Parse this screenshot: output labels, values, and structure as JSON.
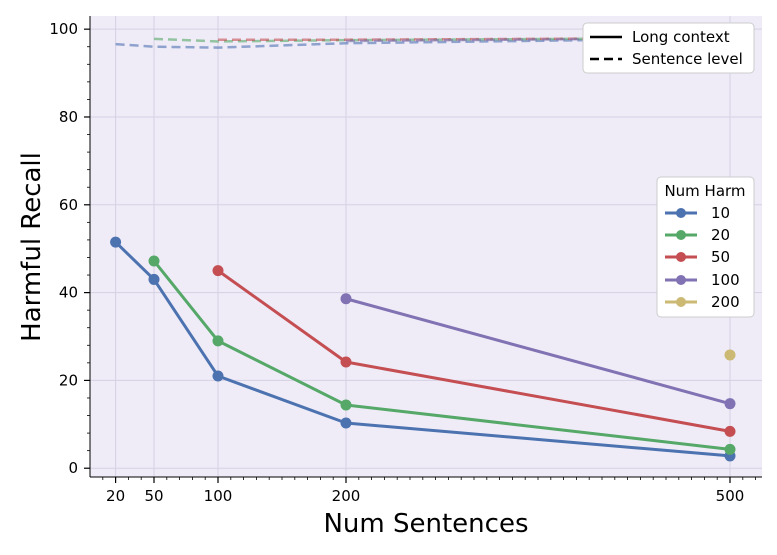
{
  "chart_data": {
    "type": "line",
    "xlabel": "Num Sentences",
    "ylabel": "Harmful Recall",
    "xlim": [
      0,
      525
    ],
    "ylim": [
      -2,
      103
    ],
    "x_ticks": [
      20,
      50,
      100,
      200,
      500
    ],
    "x_tick_labels": [
      "20",
      "50",
      "100",
      "200",
      "500"
    ],
    "y_ticks": [
      0,
      20,
      40,
      60,
      80,
      100
    ],
    "y_tick_labels": [
      "0",
      "20",
      "40",
      "60",
      "80",
      "100"
    ],
    "grid": true,
    "background": "#efecf8",
    "style_legend": {
      "placement": "top-right",
      "entries": [
        {
          "label": "Long context",
          "style": "solid"
        },
        {
          "label": "Sentence level",
          "style": "dashed"
        }
      ]
    },
    "series_legend": {
      "title": "Num Harm",
      "placement": "center-right",
      "entries": [
        "10",
        "20",
        "50",
        "100",
        "200"
      ]
    },
    "series": [
      {
        "name": "10",
        "color": "#4c72b0",
        "long_context": {
          "x": [
            20,
            50,
            100,
            200,
            500
          ],
          "y": [
            51.5,
            43.0,
            21.0,
            10.3,
            2.8
          ]
        },
        "sentence_level": {
          "x": [
            20,
            50,
            100,
            200,
            500
          ],
          "y": [
            96.6,
            96.0,
            95.8,
            96.8,
            97.9
          ]
        }
      },
      {
        "name": "20",
        "color": "#55a868",
        "long_context": {
          "x": [
            50,
            100,
            200,
            500
          ],
          "y": [
            47.2,
            29.0,
            14.4,
            4.3
          ]
        },
        "sentence_level": {
          "x": [
            50,
            100,
            200,
            500
          ],
          "y": [
            97.8,
            97.2,
            97.5,
            98.0
          ]
        }
      },
      {
        "name": "50",
        "color": "#c44e52",
        "long_context": {
          "x": [
            100,
            200,
            500
          ],
          "y": [
            45.0,
            24.2,
            8.4
          ]
        },
        "sentence_level": {
          "x": [
            100,
            200,
            500
          ],
          "y": [
            97.6,
            97.6,
            98.0
          ]
        }
      },
      {
        "name": "100",
        "color": "#8172b3",
        "long_context": {
          "x": [
            200,
            500
          ],
          "y": [
            38.6,
            14.7
          ]
        },
        "sentence_level": {
          "x": [
            200,
            500
          ],
          "y": [
            97.3,
            98.0
          ]
        }
      },
      {
        "name": "200",
        "color": "#ccb974",
        "long_context": {
          "x": [
            500
          ],
          "y": [
            25.8
          ]
        },
        "sentence_level": {
          "x": [
            500
          ],
          "y": [
            98.1
          ]
        }
      }
    ]
  }
}
